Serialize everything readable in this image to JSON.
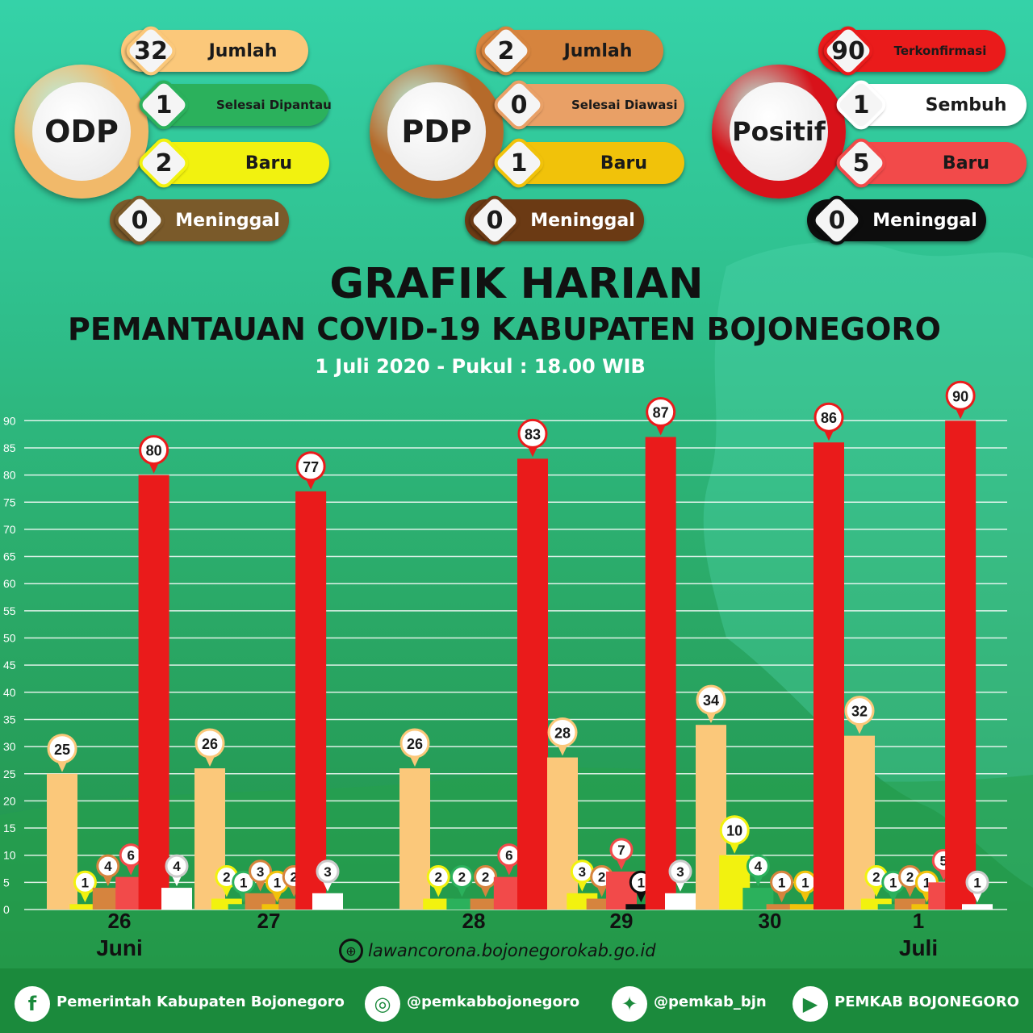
{
  "summary": [
    {
      "key": "odp",
      "title": "ODP",
      "ring_color": "#f1b96a",
      "items": [
        {
          "value": "32",
          "label": "Jumlah",
          "color": "#fbc87a",
          "text_color": "#1a1a1a"
        },
        {
          "value": "1",
          "label": "Selesai Dipantau",
          "color": "#2bb15c",
          "text_color": "#1a1a1a"
        },
        {
          "value": "2",
          "label": "Baru",
          "color": "#f2f20f",
          "text_color": "#1a1a1a"
        },
        {
          "value": "0",
          "label": "Meninggal",
          "color": "#7a5a2a",
          "text_color": "#ffffff"
        }
      ]
    },
    {
      "key": "pdp",
      "title": "PDP",
      "ring_color": "#b56a2a",
      "items": [
        {
          "value": "2",
          "label": "Jumlah",
          "color": "#d6843e",
          "text_color": "#1a1a1a"
        },
        {
          "value": "0",
          "label": "Selesai Diawasi",
          "color": "#e9a066",
          "text_color": "#1a1a1a"
        },
        {
          "value": "1",
          "label": "Baru",
          "color": "#f1c20a",
          "text_color": "#1a1a1a"
        },
        {
          "value": "0",
          "label": "Meninggal",
          "color": "#6b3a14",
          "text_color": "#ffffff"
        }
      ]
    },
    {
      "key": "positif",
      "title": "Positif",
      "ring_color": "#d8121a",
      "items": [
        {
          "value": "90",
          "label": "Terkonfirmasi",
          "color": "#ea1b1b",
          "text_color": "#1a1a1a"
        },
        {
          "value": "1",
          "label": "Sembuh",
          "color": "#ffffff",
          "text_color": "#1a1a1a"
        },
        {
          "value": "5",
          "label": "Baru",
          "color": "#f24a4a",
          "text_color": "#1a1a1a"
        },
        {
          "value": "0",
          "label": "Meninggal",
          "color": "#0d0d0d",
          "text_color": "#ffffff"
        }
      ]
    }
  ],
  "titles": {
    "main": "GRAFIK HARIAN",
    "sub": "PEMANTAUAN COVID-19 KABUPATEN BOJONEGORO",
    "date": "1 Juli 2020 - Pukul : 18.00 WIB"
  },
  "chart_data": {
    "type": "bar",
    "ylim": [
      0,
      90
    ],
    "yticks": [
      0,
      5,
      10,
      15,
      20,
      25,
      30,
      35,
      40,
      45,
      50,
      55,
      60,
      65,
      70,
      75,
      80,
      85,
      90
    ],
    "grid": true,
    "categories": [
      "26",
      "27",
      "28",
      "29",
      "30",
      "1"
    ],
    "month_labels": [
      {
        "text": "Juni",
        "category": "26"
      },
      {
        "text": "Juli",
        "category": "1"
      }
    ],
    "series_colors": [
      "#fbc87a",
      "#f2f20f",
      "#2bb15c",
      "#d6843e",
      "#f1c20a",
      "#ea1b1b",
      "#f24a4a",
      "#ffffff",
      "#0d0d0d"
    ],
    "groups": [
      {
        "category": "26",
        "bars": [
          {
            "color": 0,
            "value": 25
          },
          {
            "color": 1,
            "value": 1
          },
          {
            "color": 3,
            "value": 4
          },
          {
            "color": 6,
            "value": 6
          },
          {
            "color": 5,
            "value": 80
          },
          {
            "color": 7,
            "value": 4
          }
        ]
      },
      {
        "category": "27",
        "bars": [
          {
            "color": 0,
            "value": 26
          },
          {
            "color": 1,
            "value": 2
          },
          {
            "color": 2,
            "value": 1
          },
          {
            "color": 3,
            "value": 3
          },
          {
            "color": 4,
            "value": 1
          },
          {
            "color": 3,
            "value": 2
          },
          {
            "color": 5,
            "value": 77
          },
          {
            "color": 7,
            "value": 3
          }
        ]
      },
      {
        "category": "28",
        "bars": [
          {
            "color": 0,
            "value": 26
          },
          {
            "color": 1,
            "value": 2
          },
          {
            "color": 2,
            "value": 2
          },
          {
            "color": 3,
            "value": 2
          },
          {
            "color": 6,
            "value": 6
          },
          {
            "color": 5,
            "value": 83
          }
        ]
      },
      {
        "category": "29",
        "bars": [
          {
            "color": 0,
            "value": 28
          },
          {
            "color": 1,
            "value": 3
          },
          {
            "color": 3,
            "value": 2
          },
          {
            "color": 6,
            "value": 7
          },
          {
            "color": 8,
            "value": 1
          },
          {
            "color": 5,
            "value": 87
          },
          {
            "color": 7,
            "value": 3
          }
        ]
      },
      {
        "category": "30",
        "bars": [
          {
            "color": 0,
            "value": 34
          },
          {
            "color": 1,
            "value": 10
          },
          {
            "color": 2,
            "value": 4
          },
          {
            "color": 3,
            "value": 1
          },
          {
            "color": 4,
            "value": 1
          },
          {
            "color": 5,
            "value": 86
          }
        ]
      },
      {
        "category": "1",
        "bars": [
          {
            "color": 0,
            "value": 32
          },
          {
            "color": 1,
            "value": 2
          },
          {
            "color": 2,
            "value": 1
          },
          {
            "color": 3,
            "value": 2
          },
          {
            "color": 4,
            "value": 1
          },
          {
            "color": 6,
            "value": 5
          },
          {
            "color": 5,
            "value": 90
          },
          {
            "color": 7,
            "value": 1
          }
        ]
      }
    ]
  },
  "website": "lawancorona.bojonegorokab.go.id",
  "footer": [
    {
      "icon": "facebook-icon",
      "glyph": "f",
      "text": "Pemerintah Kabupaten Bojonegoro"
    },
    {
      "icon": "instagram-icon",
      "glyph": "◎",
      "text": "@pemkabbojonegoro"
    },
    {
      "icon": "twitter-icon",
      "glyph": "✦",
      "text": "@pemkab_bjn"
    },
    {
      "icon": "youtube-icon",
      "glyph": "▶",
      "text": "PEMKAB BOJONEGORO"
    }
  ]
}
